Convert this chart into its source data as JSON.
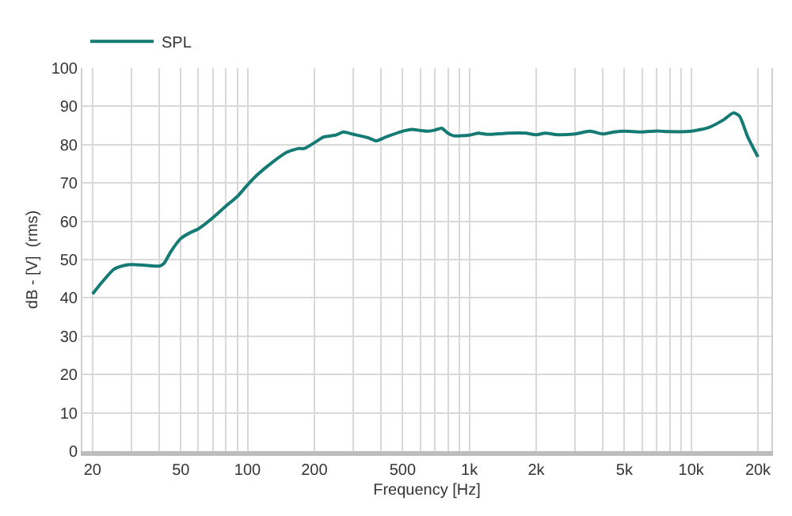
{
  "chart_data": {
    "type": "line",
    "xlabel": "Frequency [Hz]",
    "ylabel": "dB - [V]  (rms)",
    "log": "x",
    "grid": true,
    "legend": "top left",
    "marker": "none",
    "line_style": "solid",
    "x": [
      20,
      22,
      25,
      28,
      30,
      35,
      40,
      42,
      45,
      50,
      55,
      60,
      70,
      80,
      90,
      100,
      110,
      130,
      150,
      170,
      180,
      200,
      220,
      250,
      270,
      300,
      350,
      380,
      420,
      500,
      550,
      600,
      650,
      700,
      750,
      800,
      850,
      1000,
      1100,
      1200,
      1500,
      1800,
      2000,
      2200,
      2500,
      3000,
      3500,
      4000,
      4500,
      5000,
      6000,
      7000,
      8000,
      10000,
      12000,
      14000,
      15500,
      16500,
      18000,
      20000
    ],
    "series": [
      {
        "name": "SPL",
        "color": "#137a74",
        "values": [
          41,
          44,
          47.5,
          48.5,
          48.7,
          48.5,
          48.3,
          49,
          52,
          55.5,
          57,
          58,
          61,
          64,
          66.5,
          69.5,
          72,
          75.5,
          78,
          79,
          79,
          80.5,
          82,
          82.5,
          83.3,
          82.7,
          81.8,
          81,
          82,
          83.5,
          84,
          83.7,
          83.5,
          83.8,
          84.3,
          83,
          82.3,
          82.5,
          83,
          82.7,
          83,
          83,
          82.6,
          83,
          82.6,
          82.8,
          83.5,
          82.8,
          83.3,
          83.5,
          83.3,
          83.6,
          83.4,
          83.5,
          84.5,
          86.5,
          88.3,
          87.5,
          82,
          76.8
        ]
      }
    ],
    "xlim": [
      18,
      23000
    ],
    "xticks": [
      20,
      {
        "value": 30,
        "label": null
      },
      {
        "value": 40,
        "label": null
      },
      50,
      {
        "value": 60,
        "label": null
      },
      {
        "value": 70,
        "label": null
      },
      {
        "value": 80,
        "label": null
      },
      {
        "value": 90,
        "label": null
      },
      100,
      200,
      {
        "value": 300,
        "label": null
      },
      {
        "value": 400,
        "label": null
      },
      500,
      {
        "value": 600,
        "label": null
      },
      {
        "value": 700,
        "label": null
      },
      {
        "value": 800,
        "label": null
      },
      {
        "value": 900,
        "label": null
      },
      {
        "value": 1000,
        "label": "1k"
      },
      {
        "value": 2000,
        "label": "2k"
      },
      {
        "value": 3000,
        "label": null
      },
      {
        "value": 4000,
        "label": null
      },
      {
        "value": 5000,
        "label": "5k"
      },
      {
        "value": 6000,
        "label": null
      },
      {
        "value": 7000,
        "label": null
      },
      {
        "value": 8000,
        "label": null
      },
      {
        "value": 9000,
        "label": null
      },
      {
        "value": 10000,
        "label": "10k"
      },
      {
        "value": 20000,
        "label": "20k"
      }
    ],
    "ylim": [
      0,
      100
    ],
    "yticks": [
      0,
      10,
      20,
      30,
      40,
      50,
      60,
      70,
      80,
      90,
      100
    ]
  }
}
